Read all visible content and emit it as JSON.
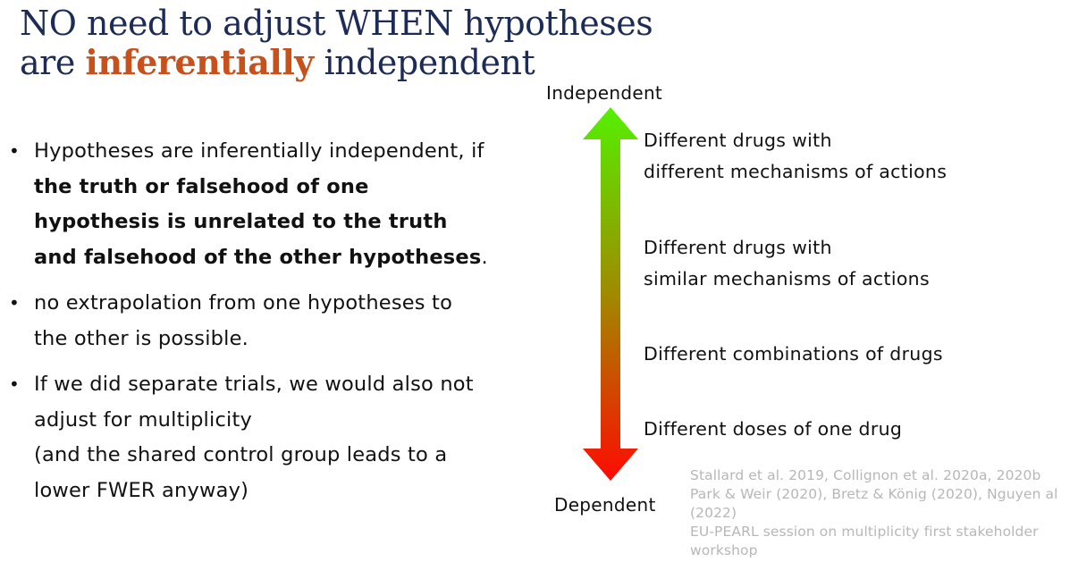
{
  "title": {
    "line1": "NO need to adjust WHEN hypotheses",
    "line2_pre": "are ",
    "line2_emph": "inferentially",
    "line2_post": " independent"
  },
  "bullets": [
    {
      "pre": "Hypotheses are inferentially independent, if ",
      "bold": "the truth or falsehood of one hypothesis is unrelated to the truth and falsehood of the other hypotheses",
      "post": "."
    },
    {
      "text": "no extrapolation from one hypotheses to the other is possible."
    },
    {
      "line1": "If we did separate trials, we would also not adjust for multiplicity",
      "line2": "(and the shared control group leads to a lower FWER anyway)"
    }
  ],
  "scale": {
    "top_label": "Independent",
    "bottom_label": "Dependent",
    "top_color": "#55f000",
    "bottom_color": "#ff0a00",
    "levels": [
      {
        "line1": "Different drugs with",
        "line2": "different mechanisms of actions"
      },
      {
        "line1": "Different drugs with",
        "line2": "similar mechanisms of actions"
      },
      {
        "line1": "Different combinations of drugs"
      },
      {
        "line1": "Different doses of one drug"
      }
    ]
  },
  "references": {
    "line1": "Stallard et al. 2019, Collignon et al. 2020a, 2020b",
    "line2": "Park & Weir (2020), Bretz & König (2020), Nguyen al (2022)",
    "line3": "EU-PEARL session on multiplicity first stakeholder workshop"
  }
}
